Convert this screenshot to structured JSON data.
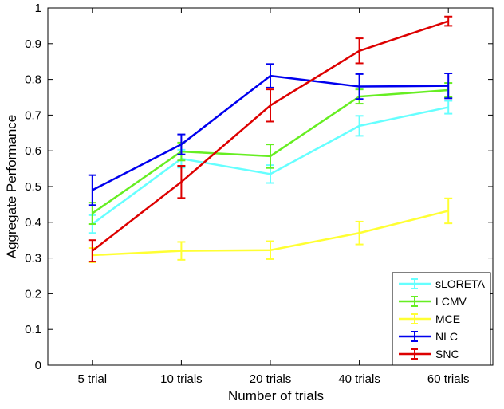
{
  "chart_data": {
    "type": "line",
    "title": "",
    "xlabel": "Number of trials",
    "ylabel": "Aggregate Performance",
    "categories": [
      "5 trial",
      "10 trials",
      "20 trials",
      "40 trials",
      "60 trials"
    ],
    "ylim": [
      0,
      1
    ],
    "yticks": [
      "0",
      "0.1",
      "0.2",
      "0.3",
      "0.4",
      "0.5",
      "0.6",
      "0.7",
      "0.8",
      "0.9",
      "1"
    ],
    "grid": false,
    "legend_position": "bottom-right",
    "series": [
      {
        "name": "sLORETA",
        "color": "#66ffff",
        "values": [
          0.395,
          0.578,
          0.535,
          0.67,
          0.722
        ],
        "errors": [
          0.025,
          0.025,
          0.025,
          0.028,
          0.018
        ]
      },
      {
        "name": "LCMV",
        "color": "#66ee22",
        "values": [
          0.425,
          0.598,
          0.585,
          0.752,
          0.77
        ],
        "errors": [
          0.03,
          0.025,
          0.033,
          0.02,
          0.02
        ]
      },
      {
        "name": "MCE",
        "color": "#ffff33",
        "values": [
          0.308,
          0.32,
          0.322,
          0.37,
          0.432
        ],
        "errors": [
          0.02,
          0.025,
          0.025,
          0.032,
          0.035
        ]
      },
      {
        "name": "NLC",
        "color": "#0000ee",
        "values": [
          0.49,
          0.618,
          0.81,
          0.78,
          0.782
        ],
        "errors": [
          0.042,
          0.028,
          0.033,
          0.035,
          0.035
        ]
      },
      {
        "name": "SNC",
        "color": "#dd0000",
        "values": [
          0.32,
          0.513,
          0.727,
          0.88,
          0.963
        ],
        "errors": [
          0.03,
          0.045,
          0.045,
          0.035,
          0.013
        ]
      }
    ]
  }
}
